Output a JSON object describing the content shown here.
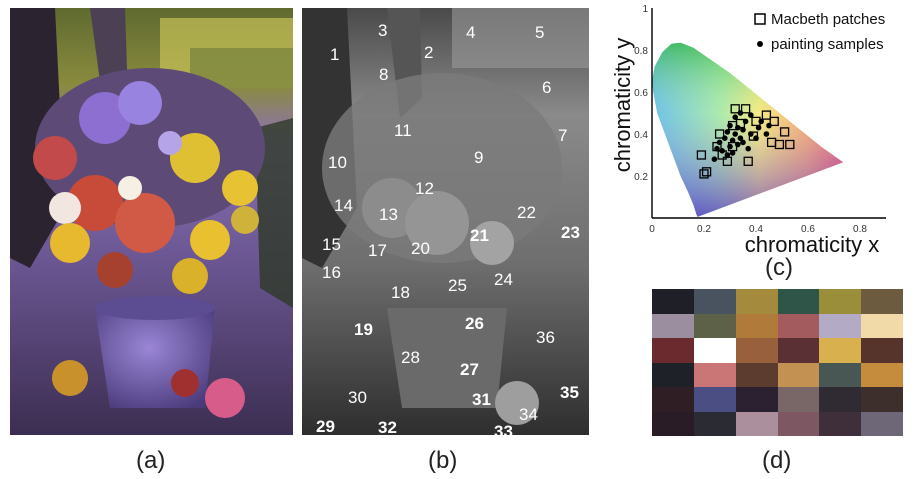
{
  "figure": {
    "panels": [
      {
        "id": "a",
        "caption": "(a)"
      },
      {
        "id": "b",
        "caption": "(b)"
      },
      {
        "id": "c",
        "caption": "(c)"
      },
      {
        "id": "d",
        "caption": "(d)"
      }
    ]
  },
  "sample_labels": [
    {
      "label": "1",
      "bold": false
    },
    {
      "label": "2",
      "bold": false
    },
    {
      "label": "3",
      "bold": false
    },
    {
      "label": "4",
      "bold": false
    },
    {
      "label": "5",
      "bold": false
    },
    {
      "label": "6",
      "bold": false
    },
    {
      "label": "7",
      "bold": false
    },
    {
      "label": "8",
      "bold": false
    },
    {
      "label": "9",
      "bold": false
    },
    {
      "label": "10",
      "bold": false
    },
    {
      "label": "11",
      "bold": false
    },
    {
      "label": "12",
      "bold": false
    },
    {
      "label": "13",
      "bold": false
    },
    {
      "label": "14",
      "bold": false
    },
    {
      "label": "15",
      "bold": false
    },
    {
      "label": "16",
      "bold": false
    },
    {
      "label": "17",
      "bold": false
    },
    {
      "label": "18",
      "bold": false
    },
    {
      "label": "19",
      "bold": true
    },
    {
      "label": "20",
      "bold": false
    },
    {
      "label": "21",
      "bold": true
    },
    {
      "label": "22",
      "bold": false
    },
    {
      "label": "23",
      "bold": true
    },
    {
      "label": "24",
      "bold": false
    },
    {
      "label": "25",
      "bold": false
    },
    {
      "label": "26",
      "bold": true
    },
    {
      "label": "27",
      "bold": true
    },
    {
      "label": "28",
      "bold": false
    },
    {
      "label": "29",
      "bold": true
    },
    {
      "label": "30",
      "bold": false
    },
    {
      "label": "31",
      "bold": true
    },
    {
      "label": "32",
      "bold": true
    },
    {
      "label": "33",
      "bold": true
    },
    {
      "label": "34",
      "bold": false
    },
    {
      "label": "35",
      "bold": true
    },
    {
      "label": "36",
      "bold": false
    }
  ],
  "chart_data": {
    "type": "scatter",
    "xlabel": "chromaticity x",
    "ylabel": "chromaticity y",
    "xlim": [
      0,
      0.9
    ],
    "ylim": [
      0,
      1.0
    ],
    "x_ticks": [
      "0",
      "0.2",
      "0.4",
      "0.6",
      "0.8"
    ],
    "y_ticks": [
      "0",
      "0.2",
      "0.4",
      "0.6",
      "0.8",
      "1"
    ],
    "legend_position": "top-right",
    "series": [
      {
        "name": "Macbeth patches",
        "marker": "open-square",
        "points": [
          [
            0.19,
            0.3
          ],
          [
            0.2,
            0.21
          ],
          [
            0.21,
            0.22
          ],
          [
            0.25,
            0.34
          ],
          [
            0.26,
            0.4
          ],
          [
            0.27,
            0.3
          ],
          [
            0.29,
            0.27
          ],
          [
            0.31,
            0.34
          ],
          [
            0.31,
            0.44
          ],
          [
            0.32,
            0.52
          ],
          [
            0.34,
            0.45
          ],
          [
            0.36,
            0.52
          ],
          [
            0.37,
            0.27
          ],
          [
            0.39,
            0.39
          ],
          [
            0.4,
            0.46
          ],
          [
            0.44,
            0.49
          ],
          [
            0.46,
            0.36
          ],
          [
            0.47,
            0.46
          ],
          [
            0.49,
            0.35
          ],
          [
            0.51,
            0.41
          ],
          [
            0.53,
            0.35
          ]
        ]
      },
      {
        "name": "painting samples",
        "marker": "filled-circle",
        "points": [
          [
            0.24,
            0.28
          ],
          [
            0.25,
            0.33
          ],
          [
            0.26,
            0.36
          ],
          [
            0.27,
            0.32
          ],
          [
            0.28,
            0.38
          ],
          [
            0.29,
            0.41
          ],
          [
            0.3,
            0.34
          ],
          [
            0.3,
            0.44
          ],
          [
            0.31,
            0.37
          ],
          [
            0.32,
            0.4
          ],
          [
            0.32,
            0.48
          ],
          [
            0.33,
            0.35
          ],
          [
            0.33,
            0.43
          ],
          [
            0.34,
            0.38
          ],
          [
            0.34,
            0.5
          ],
          [
            0.35,
            0.42
          ],
          [
            0.36,
            0.46
          ],
          [
            0.37,
            0.33
          ],
          [
            0.38,
            0.4
          ],
          [
            0.38,
            0.49
          ],
          [
            0.4,
            0.38
          ],
          [
            0.41,
            0.43
          ],
          [
            0.42,
            0.46
          ],
          [
            0.44,
            0.4
          ],
          [
            0.45,
            0.44
          ],
          [
            0.29,
            0.3
          ],
          [
            0.31,
            0.31
          ],
          [
            0.35,
            0.36
          ]
        ]
      }
    ]
  },
  "palette": {
    "rows": [
      [
        "#1e1f27",
        "#49535f",
        "#a38a3c",
        "#2f5448",
        "#9a8e3a",
        "#6c5b3f"
      ],
      [
        "#9b8e9f",
        "#5d6147",
        "#b07a3a",
        "#a35b5d",
        "#b3aac5",
        "#f2d9a8"
      ],
      [
        "#6b2a2e",
        "#ffffff",
        "#98603d",
        "#5a3035",
        "#d8b04e",
        "#56342b"
      ],
      [
        "#1e2228",
        "#cb7676",
        "#5c3c2f",
        "#c39151",
        "#485654",
        "#c48c3c"
      ],
      [
        "#2f1e24",
        "#4b4e82",
        "#2b2130",
        "#796768",
        "#302a33",
        "#3c2f2c"
      ],
      [
        "#2a1c26",
        "#2a2b33",
        "#ab8f9d",
        "#7d5862",
        "#3e2f3b",
        "#6e6778"
      ]
    ]
  },
  "colors": {
    "sky_purple": "#7d66a6",
    "vase_purple": "#6f5ba8",
    "foliage_yellow": "#c6c257"
  }
}
